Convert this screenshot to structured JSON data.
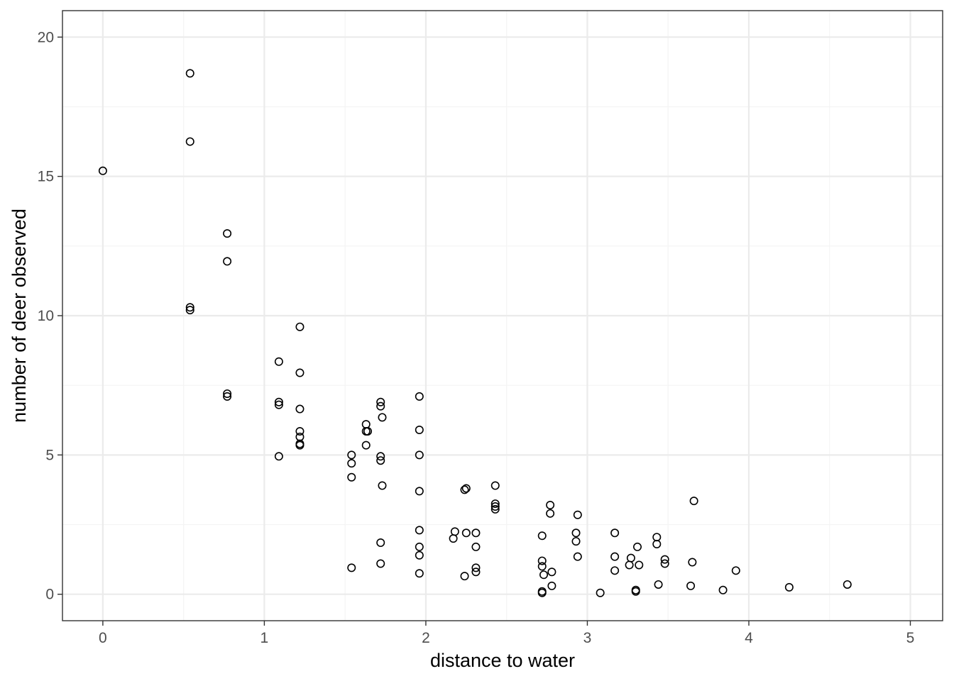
{
  "chart_data": {
    "type": "scatter",
    "title": "",
    "xlabel": "distance to water",
    "ylabel": "number of deer observed",
    "xlim": [
      -0.25,
      5.2
    ],
    "ylim": [
      -0.95,
      20.95
    ],
    "x_ticks": [
      0,
      1,
      2,
      3,
      4,
      5
    ],
    "y_ticks": [
      0,
      5,
      10,
      15,
      20
    ],
    "x_tick_labels": [
      "0",
      "1",
      "2",
      "3",
      "4",
      "5"
    ],
    "y_tick_labels": [
      "0",
      "5",
      "10",
      "15",
      "20"
    ],
    "grid": true,
    "legend": "none",
    "theme": "bw",
    "marker": "open-circle",
    "colors": {
      "point_stroke": "#000000",
      "major_grid": "#ebebeb",
      "minor_grid": "#f4f4f4",
      "panel_border": "#333333",
      "tick_label": "#4d4d4d"
    },
    "points": [
      [
        0.0,
        15.2
      ],
      [
        0.54,
        18.7
      ],
      [
        0.54,
        16.25
      ],
      [
        0.54,
        10.3
      ],
      [
        0.54,
        10.2
      ],
      [
        0.77,
        12.95
      ],
      [
        0.77,
        11.95
      ],
      [
        0.77,
        7.2
      ],
      [
        0.77,
        7.1
      ],
      [
        1.09,
        8.35
      ],
      [
        1.09,
        6.9
      ],
      [
        1.09,
        6.8
      ],
      [
        1.09,
        4.95
      ],
      [
        1.22,
        9.6
      ],
      [
        1.22,
        7.95
      ],
      [
        1.22,
        6.65
      ],
      [
        1.22,
        5.85
      ],
      [
        1.22,
        5.65
      ],
      [
        1.22,
        5.4
      ],
      [
        1.22,
        5.35
      ],
      [
        1.54,
        5.0
      ],
      [
        1.54,
        4.7
      ],
      [
        1.54,
        4.2
      ],
      [
        1.54,
        0.95
      ],
      [
        1.63,
        6.1
      ],
      [
        1.63,
        5.85
      ],
      [
        1.64,
        5.85
      ],
      [
        1.63,
        5.35
      ],
      [
        1.72,
        6.9
      ],
      [
        1.72,
        6.75
      ],
      [
        1.73,
        6.35
      ],
      [
        1.72,
        4.95
      ],
      [
        1.72,
        4.8
      ],
      [
        1.73,
        3.9
      ],
      [
        1.72,
        1.85
      ],
      [
        1.72,
        1.1
      ],
      [
        1.96,
        7.1
      ],
      [
        1.96,
        5.9
      ],
      [
        1.96,
        5.0
      ],
      [
        1.96,
        3.7
      ],
      [
        1.96,
        2.3
      ],
      [
        1.96,
        1.7
      ],
      [
        1.96,
        1.4
      ],
      [
        1.96,
        0.75
      ],
      [
        2.17,
        2.0
      ],
      [
        2.18,
        2.25
      ],
      [
        2.24,
        3.75
      ],
      [
        2.25,
        3.8
      ],
      [
        2.25,
        2.2
      ],
      [
        2.24,
        0.65
      ],
      [
        2.31,
        2.2
      ],
      [
        2.31,
        1.7
      ],
      [
        2.31,
        0.95
      ],
      [
        2.31,
        0.8
      ],
      [
        2.43,
        3.9
      ],
      [
        2.43,
        3.25
      ],
      [
        2.43,
        3.15
      ],
      [
        2.43,
        3.05
      ],
      [
        2.72,
        2.1
      ],
      [
        2.72,
        1.2
      ],
      [
        2.72,
        1.0
      ],
      [
        2.73,
        0.7
      ],
      [
        2.72,
        0.1
      ],
      [
        2.72,
        0.05
      ],
      [
        2.77,
        3.2
      ],
      [
        2.77,
        2.9
      ],
      [
        2.78,
        0.8
      ],
      [
        2.78,
        0.3
      ],
      [
        2.93,
        2.2
      ],
      [
        2.93,
        1.9
      ],
      [
        2.94,
        2.85
      ],
      [
        2.94,
        1.35
      ],
      [
        3.08,
        0.05
      ],
      [
        3.17,
        2.2
      ],
      [
        3.17,
        1.35
      ],
      [
        3.17,
        0.85
      ],
      [
        3.26,
        1.05
      ],
      [
        3.27,
        1.3
      ],
      [
        3.3,
        0.15
      ],
      [
        3.3,
        0.1
      ],
      [
        3.31,
        1.7
      ],
      [
        3.32,
        1.05
      ],
      [
        3.43,
        2.05
      ],
      [
        3.43,
        1.8
      ],
      [
        3.44,
        0.35
      ],
      [
        3.48,
        1.25
      ],
      [
        3.48,
        1.1
      ],
      [
        3.64,
        0.3
      ],
      [
        3.65,
        1.15
      ],
      [
        3.66,
        3.35
      ],
      [
        3.84,
        0.15
      ],
      [
        3.92,
        0.85
      ],
      [
        4.25,
        0.25
      ],
      [
        4.61,
        0.35
      ]
    ]
  }
}
